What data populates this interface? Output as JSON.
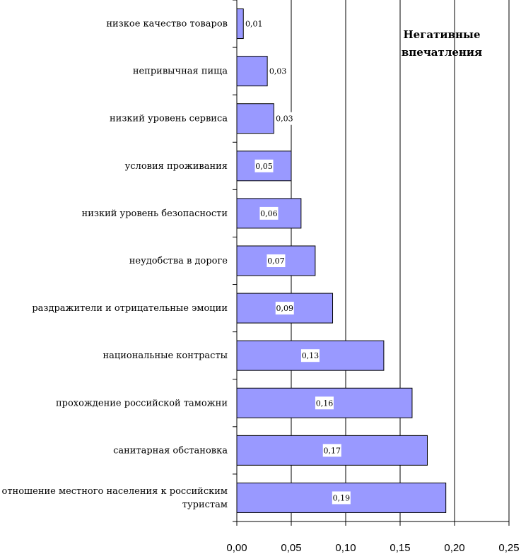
{
  "chart_data": {
    "type": "bar",
    "orientation": "horizontal",
    "title": "",
    "annotation": [
      "Негативные",
      "впечатления"
    ],
    "categories": [
      [
        "низкое качество товаров"
      ],
      [
        "непривычная пища"
      ],
      [
        "низкий уровень сервиса"
      ],
      [
        "условия проживания"
      ],
      [
        "низкий уровень безопасности"
      ],
      [
        "неудобства в дороге"
      ],
      [
        "раздражители и отрицательные эмоции"
      ],
      [
        "национальные контрасты"
      ],
      [
        "прохождение российской таможни"
      ],
      [
        "санитарная обстановка"
      ],
      [
        "отношение местного населения к российским",
        "туристам"
      ]
    ],
    "values": [
      0.006,
      0.028,
      0.034,
      0.05,
      0.059,
      0.072,
      0.088,
      0.135,
      0.161,
      0.175,
      0.192
    ],
    "data_labels": [
      "0,01",
      "0,03",
      "0,03",
      "0,05",
      "0,06",
      "0,07",
      "0,09",
      "0,13",
      "0,16",
      "0,17",
      "0,19"
    ],
    "xlim": [
      0,
      0.25
    ],
    "xticks": [
      0,
      0.05,
      0.1,
      0.15,
      0.2,
      0.25
    ],
    "xtick_labels": [
      "0,00",
      "0,05",
      "0,10",
      "0,15",
      "0,20",
      "0,25"
    ],
    "xlabel": "",
    "ylabel": "",
    "grid": "vertical",
    "legend": "none",
    "colors": {
      "bar_fill": "#9999ff",
      "bar_stroke": "#000000",
      "grid": "#000000"
    }
  }
}
